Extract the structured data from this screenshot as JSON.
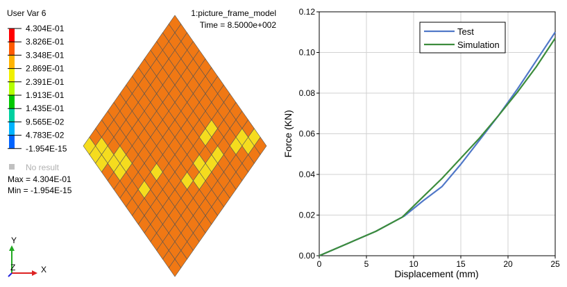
{
  "contour": {
    "variable_label": "User Var 6",
    "model_name": "1:picture_frame_model",
    "time_label": "Time = 8.5000e+002",
    "legend": [
      {
        "value": "4.304E-01",
        "color": "#ff0000"
      },
      {
        "value": "3.826E-01",
        "color": "#ff5a00"
      },
      {
        "value": "3.348E-01",
        "color": "#ffb400"
      },
      {
        "value": "2.869E-01",
        "color": "#f0f000"
      },
      {
        "value": "2.391E-01",
        "color": "#b4ff00"
      },
      {
        "value": "1.913E-01",
        "color": "#00c800"
      },
      {
        "value": "1.435E-01",
        "color": "#00d0a0"
      },
      {
        "value": "9.565E-02",
        "color": "#00b4ff"
      },
      {
        "value": "4.783E-02",
        "color": "#0064ff"
      },
      {
        "value": "-1.954E-15",
        "color": "#0000c8"
      }
    ],
    "no_result_label": "No result",
    "no_result_color": "#c0c0c0",
    "max_label": "Max = 4.304E-01",
    "min_label": "Min = -1.954E-15",
    "mesh": {
      "divisions": 15,
      "base_color": "#f07814",
      "highlight_color": "#f5dc1e",
      "edge_color": "#555555",
      "highlighted_cells": [
        [
          13,
          0
        ],
        [
          13,
          1
        ],
        [
          12,
          1
        ],
        [
          12,
          2
        ],
        [
          11,
          4
        ],
        [
          11,
          5
        ],
        [
          11,
          6
        ],
        [
          11,
          7
        ],
        [
          10,
          6
        ],
        [
          10,
          8
        ],
        [
          9,
          3
        ],
        [
          9,
          4
        ],
        [
          7,
          10
        ],
        [
          7,
          12
        ],
        [
          4,
          12
        ],
        [
          4,
          13
        ],
        [
          3,
          12
        ],
        [
          3,
          13
        ],
        [
          2,
          13
        ],
        [
          2,
          14
        ],
        [
          1,
          13
        ],
        [
          1,
          14
        ],
        [
          0,
          14
        ]
      ]
    },
    "triad": {
      "y": "Y",
      "z": "Z",
      "x": "X"
    }
  },
  "chart_data": {
    "type": "line",
    "title": "",
    "xlabel": "Displacement (mm)",
    "ylabel": "Force (KN)",
    "xlim": [
      0,
      25
    ],
    "ylim": [
      0,
      0.12
    ],
    "xticks": [
      0,
      5,
      10,
      15,
      20,
      25
    ],
    "xtick_labels": [
      "0",
      "5",
      "10",
      "15",
      "20",
      "25"
    ],
    "yticks": [
      0,
      0.02,
      0.04,
      0.06,
      0.08,
      0.1,
      0.12
    ],
    "ytick_labels": [
      "0.00",
      "0.02",
      "0.04",
      "0.06",
      "0.08",
      "0.10",
      "0.12"
    ],
    "grid": true,
    "legend_position": "top-right",
    "series": [
      {
        "name": "Test",
        "color": "#5078c8",
        "x": [
          0,
          3,
          6,
          9,
          11,
          13,
          15,
          17,
          19,
          21,
          23,
          25
        ],
        "y": [
          0,
          0.006,
          0.012,
          0.0195,
          0.027,
          0.034,
          0.045,
          0.057,
          0.069,
          0.082,
          0.096,
          0.11
        ]
      },
      {
        "name": "Simulation",
        "color": "#3c8c3c",
        "x": [
          0,
          3,
          6,
          8.8,
          11,
          13,
          15,
          17,
          19,
          21,
          23,
          25
        ],
        "y": [
          0,
          0.006,
          0.012,
          0.019,
          0.029,
          0.038,
          0.048,
          0.058,
          0.069,
          0.0805,
          0.093,
          0.107
        ]
      }
    ]
  }
}
